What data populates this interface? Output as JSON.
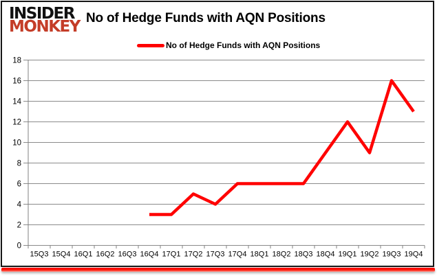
{
  "brand": {
    "line1": "INSIDER",
    "line2": "MONKEY"
  },
  "header": {
    "title": "No of Hedge Funds with AQN Positions"
  },
  "legend": {
    "label": "No of Hedge Funds with AQN Positions"
  },
  "colors": {
    "series_line": "#ff0000",
    "brand_red": "#c43d28",
    "grid": "#8a8a8a",
    "axis": "#808080",
    "tick_label": "#000000",
    "bottom_bar": "#ff1507"
  },
  "chart_data": {
    "type": "line",
    "title": "No of Hedge Funds with AQN Positions",
    "categories": [
      "15Q3",
      "15Q4",
      "16Q1",
      "16Q2",
      "16Q3",
      "16Q4",
      "17Q1",
      "17Q2",
      "17Q3",
      "17Q4",
      "18Q1",
      "18Q2",
      "18Q3",
      "18Q4",
      "19Q1",
      "19Q2",
      "19Q3",
      "19Q4"
    ],
    "series": [
      {
        "name": "No of Hedge Funds with AQN Positions",
        "values": [
          null,
          null,
          null,
          null,
          null,
          3,
          3,
          5,
          4,
          6,
          6,
          6,
          6,
          9,
          12,
          9,
          16,
          13
        ]
      }
    ],
    "xlabel": "",
    "ylabel": "",
    "ylim": [
      0,
      18
    ],
    "ytick_step": 2,
    "grid": true,
    "legend_position": "top-center"
  }
}
